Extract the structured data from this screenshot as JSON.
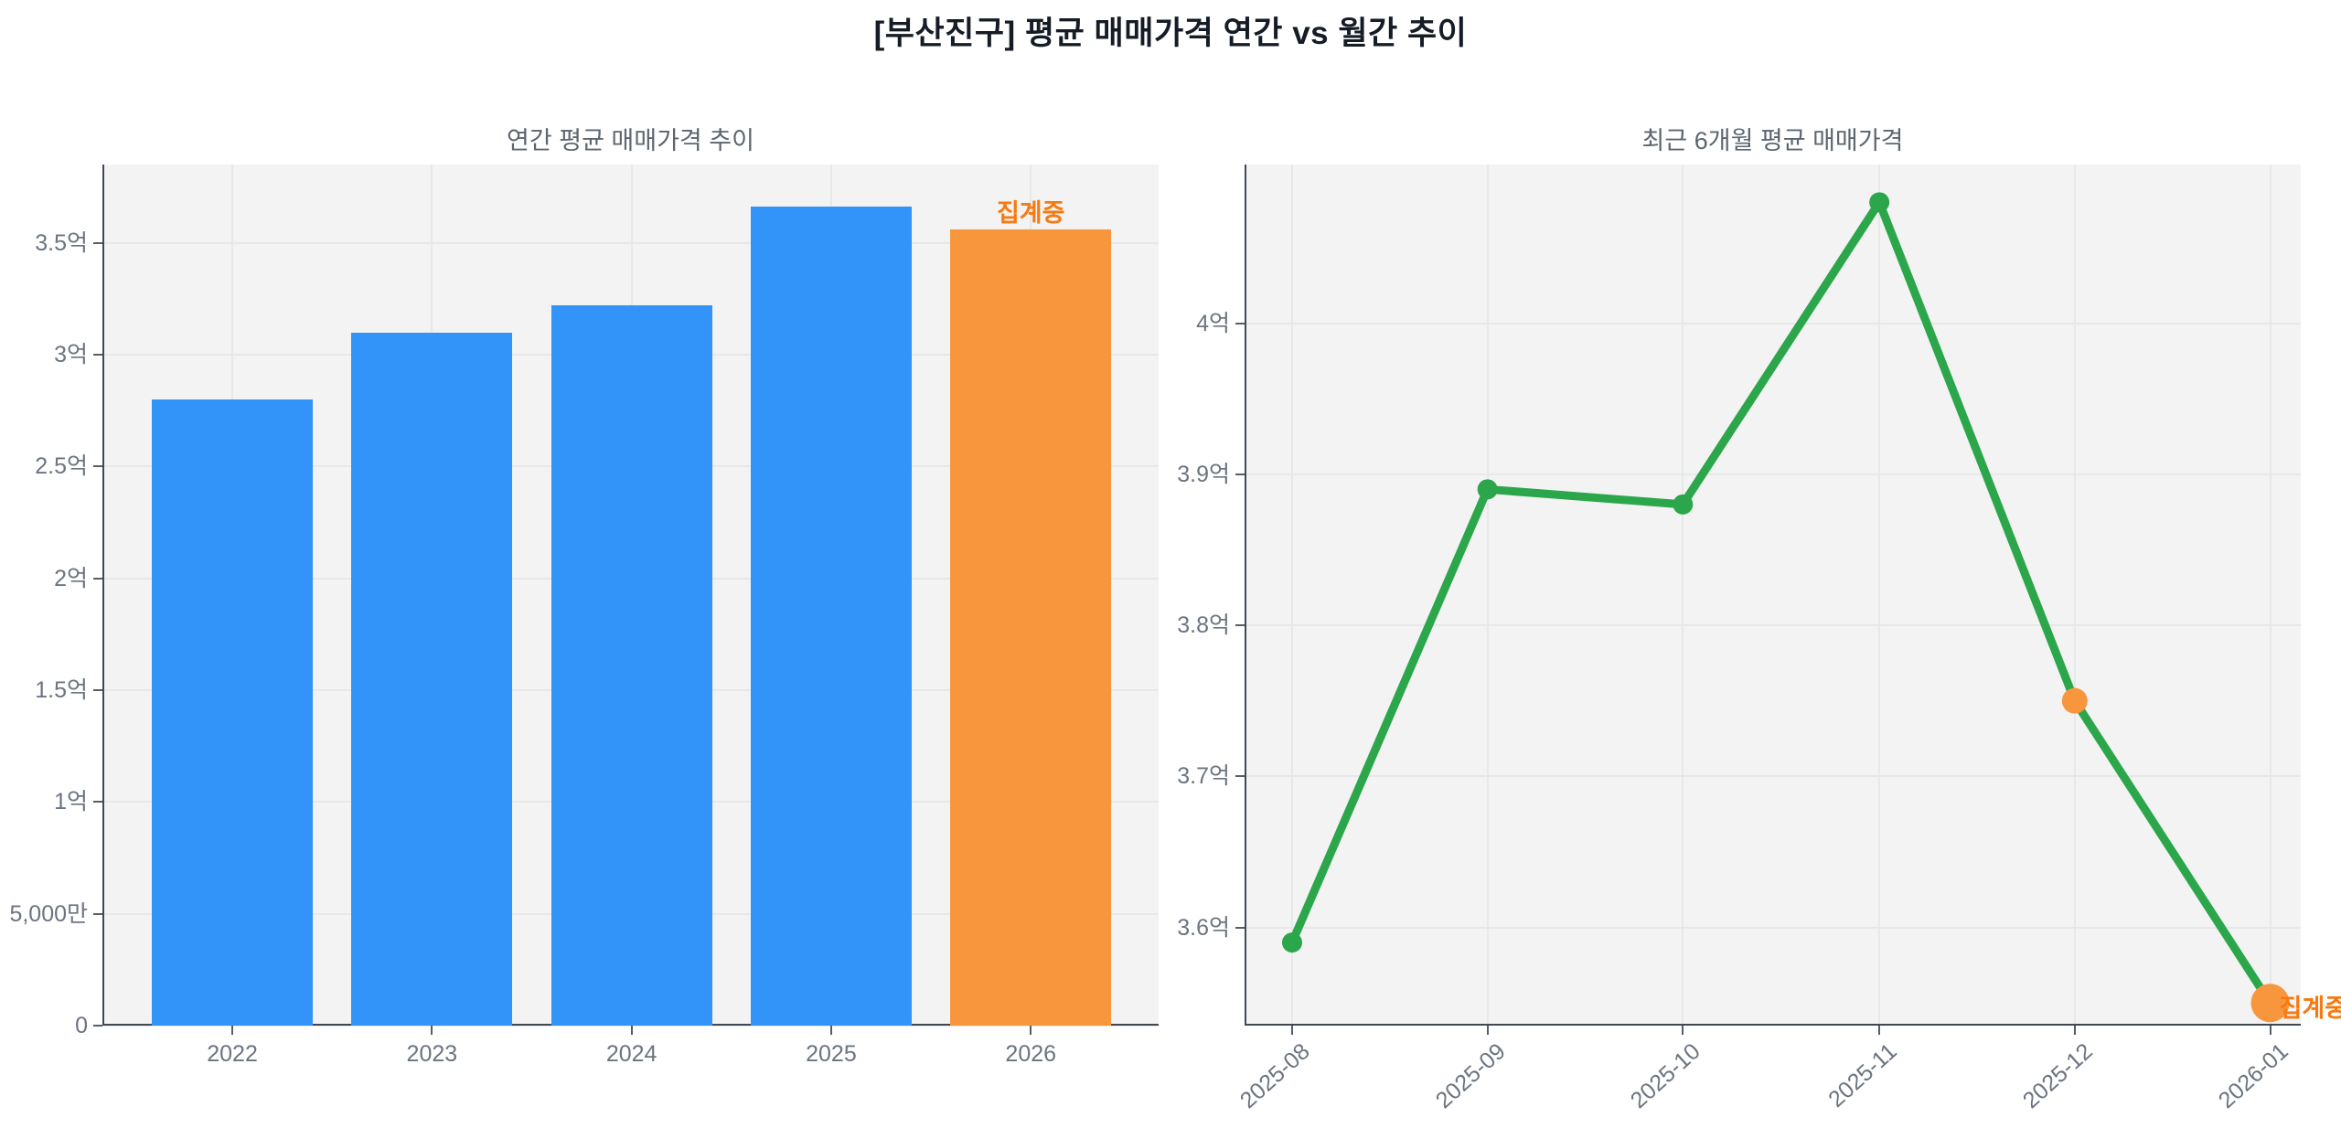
{
  "page": {
    "title": "[부산진구] 평균 매매가격 연간 vs 월간 추이"
  },
  "colors": {
    "bar_blue": "#3294F8",
    "bar_orange": "#F8963E",
    "line_green": "#2CA64A",
    "annotation_orange": "#F8790F",
    "plot_background": "#f2f3f2",
    "gridline": "#e7e8e9",
    "axis_spine": "#414854",
    "tick_label": "#6b7480",
    "title_gray": "#5c6570"
  },
  "chart_data": [
    {
      "type": "bar",
      "title": "연간 평균 매매가격 추이",
      "categories": [
        "2022",
        "2023",
        "2024",
        "2025",
        "2026"
      ],
      "values": [
        2.8,
        3.1,
        3.22,
        3.66,
        3.56
      ],
      "unit_note": "values in 억 (hundred-million KRW), read from axis",
      "bar_colors": [
        "#3294F8",
        "#3294F8",
        "#3294F8",
        "#3294F8",
        "#F8963E"
      ],
      "ylim": [
        0,
        3.85
      ],
      "yticks": [
        {
          "value": 0,
          "label": "0"
        },
        {
          "value": 0.5,
          "label": "5,000만"
        },
        {
          "value": 1,
          "label": "1억"
        },
        {
          "value": 1.5,
          "label": "1.5억"
        },
        {
          "value": 2,
          "label": "2억"
        },
        {
          "value": 2.5,
          "label": "2.5억"
        },
        {
          "value": 3,
          "label": "3억"
        },
        {
          "value": 3.5,
          "label": "3.5억"
        }
      ],
      "grid": true,
      "legend": "none",
      "annotation": {
        "text": "집계중",
        "target_category": "2026",
        "color": "#F8790F"
      }
    },
    {
      "type": "line",
      "title": "최근 6개월 평균 매매가격",
      "x": [
        "2025-08",
        "2025-09",
        "2025-10",
        "2025-11",
        "2025-12",
        "2026-01"
      ],
      "values": [
        3.59,
        3.89,
        3.88,
        4.08,
        3.75,
        3.55
      ],
      "unit_note": "values in 억 (hundred-million KRW), estimated from gridlines",
      "line_color": "#2CA64A",
      "line_width": 9,
      "marker_colors": [
        "#2CA64A",
        "#2CA64A",
        "#2CA64A",
        "#2CA64A",
        "#F8963E",
        "#F8963E"
      ],
      "marker_radii": [
        11,
        11,
        11,
        11,
        14,
        21
      ],
      "ylim": [
        3.535,
        4.105
      ],
      "yticks": [
        {
          "value": 3.6,
          "label": "3.6억"
        },
        {
          "value": 3.7,
          "label": "3.7억"
        },
        {
          "value": 3.8,
          "label": "3.8억"
        },
        {
          "value": 3.9,
          "label": "3.9억"
        },
        {
          "value": 4.0,
          "label": "4억"
        }
      ],
      "grid": true,
      "legend": "none",
      "x_label_rotation_deg": 42,
      "annotation": {
        "text": "집계중",
        "target_x": "2026-01",
        "color": "#F8790F"
      }
    }
  ]
}
